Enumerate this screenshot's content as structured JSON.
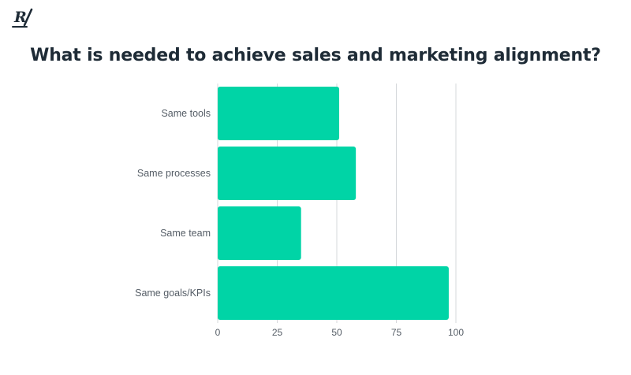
{
  "brand": {
    "logo_text": "R/",
    "logo_color": "#1e2b36"
  },
  "colors": {
    "bar": "#00d4a6",
    "grid": "#d5d8db",
    "text": "#555d66",
    "title": "#1e2b36"
  },
  "chart_data": {
    "type": "bar",
    "orientation": "horizontal",
    "title": "What is needed to achieve sales and marketing alignment?",
    "categories": [
      "Same tools",
      "Same processes",
      "Same team",
      "Same goals/KPIs"
    ],
    "values": [
      51,
      58,
      35,
      97
    ],
    "xlim": [
      0,
      100
    ],
    "xticks": [
      0,
      25,
      50,
      75,
      100
    ],
    "xlabel": "",
    "ylabel": "",
    "grid": true,
    "legend": "none"
  }
}
